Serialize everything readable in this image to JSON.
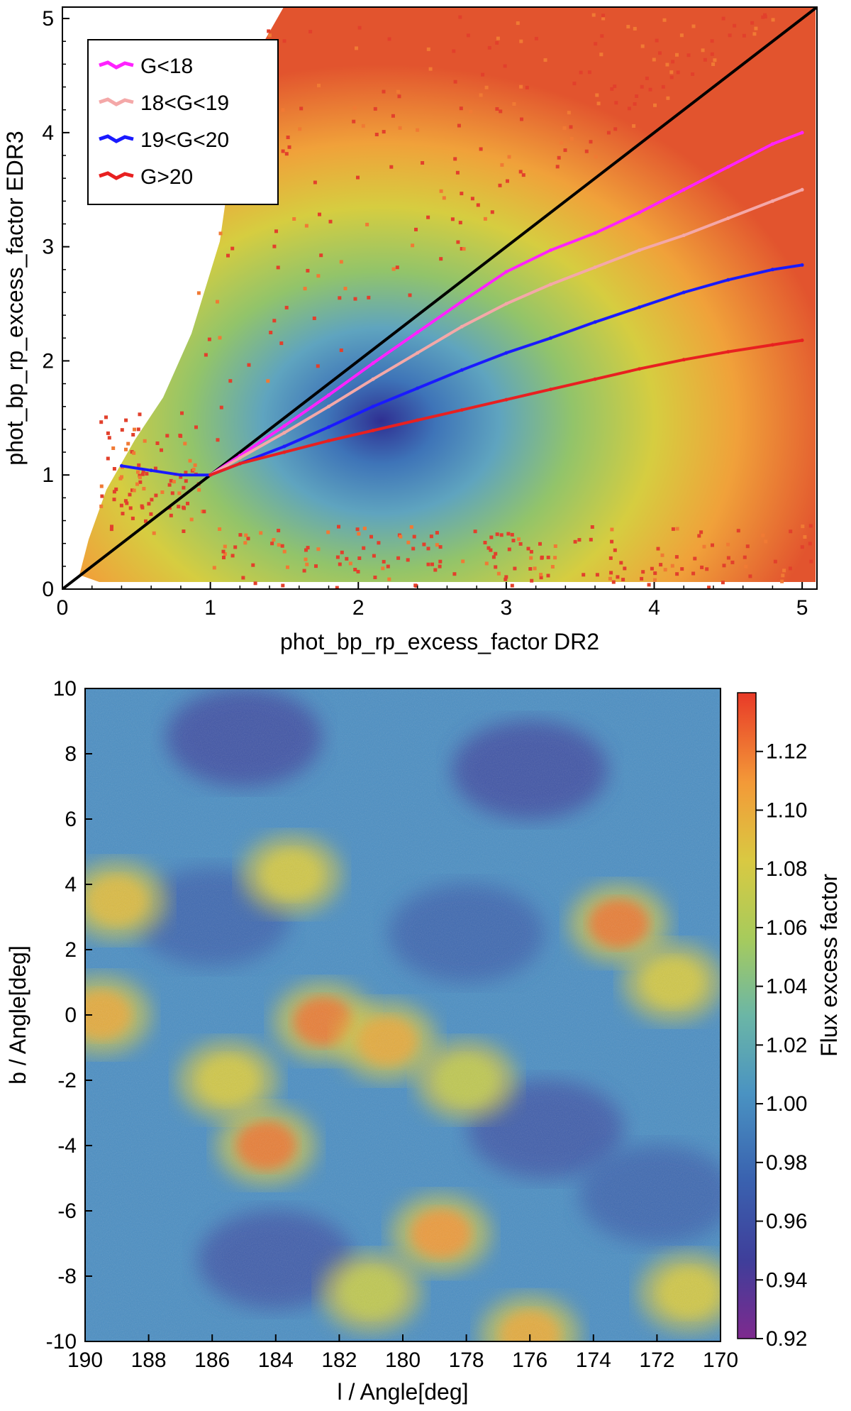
{
  "chart_data": [
    {
      "type": "scatter",
      "title": "",
      "xlabel": "phot_bp_rp_excess_factor DR2",
      "ylabel": "phot_bp_rp_excess_factor EDR3",
      "xlim": [
        0,
        5.1
      ],
      "ylim": [
        0,
        5.1
      ],
      "xticks": [
        0,
        1,
        2,
        3,
        4,
        5
      ],
      "yticks": [
        0,
        1,
        2,
        3,
        4,
        5
      ],
      "x_tick_labels": [
        "0",
        "1",
        "2",
        "3",
        "4",
        "5"
      ],
      "y_tick_labels": [
        "0",
        "1",
        "2",
        "3",
        "4",
        "5"
      ],
      "identity_line": {
        "x": [
          0,
          5.1
        ],
        "y": [
          0,
          5.1
        ],
        "color": "#000000"
      },
      "legend_position": "top-left",
      "series": [
        {
          "name": "G<18",
          "color": "#ff22ff",
          "x": [
            1.0,
            1.2,
            1.5,
            1.8,
            2.1,
            2.4,
            2.7,
            3.0,
            3.3,
            3.6,
            3.9,
            4.2,
            4.5,
            4.8,
            5.0
          ],
          "y": [
            1.0,
            1.17,
            1.43,
            1.7,
            1.98,
            2.25,
            2.52,
            2.78,
            2.97,
            3.12,
            3.3,
            3.5,
            3.7,
            3.9,
            4.0
          ]
        },
        {
          "name": "18<G<19",
          "color": "#f4a8a8",
          "x": [
            1.0,
            1.2,
            1.5,
            1.8,
            2.1,
            2.4,
            2.7,
            3.0,
            3.3,
            3.6,
            3.9,
            4.2,
            4.5,
            4.8,
            5.0
          ],
          "y": [
            1.0,
            1.15,
            1.37,
            1.6,
            1.84,
            2.07,
            2.3,
            2.5,
            2.67,
            2.82,
            2.97,
            3.1,
            3.25,
            3.4,
            3.5
          ]
        },
        {
          "name": "19<G<20",
          "color": "#1a1aff",
          "x": [
            0.4,
            0.6,
            0.8,
            1.0,
            1.2,
            1.5,
            1.8,
            2.1,
            2.4,
            2.7,
            3.0,
            3.3,
            3.6,
            3.9,
            4.2,
            4.5,
            4.8,
            5.0
          ],
          "y": [
            1.08,
            1.04,
            1.0,
            1.0,
            1.1,
            1.25,
            1.42,
            1.6,
            1.76,
            1.92,
            2.07,
            2.2,
            2.34,
            2.47,
            2.6,
            2.71,
            2.8,
            2.84
          ]
        },
        {
          "name": "G>20",
          "color": "#e82020",
          "x": [
            1.0,
            1.2,
            1.5,
            1.8,
            2.1,
            2.4,
            2.7,
            3.0,
            3.3,
            3.6,
            3.9,
            4.2,
            4.5,
            4.8,
            5.0
          ],
          "y": [
            1.0,
            1.1,
            1.2,
            1.3,
            1.39,
            1.48,
            1.57,
            1.66,
            1.75,
            1.84,
            1.93,
            2.01,
            2.08,
            2.14,
            2.18
          ]
        }
      ]
    },
    {
      "type": "heatmap",
      "title": "",
      "xlabel": "l / Angle[deg]",
      "ylabel": "b / Angle[deg]",
      "xlim": [
        190,
        170
      ],
      "ylim": [
        -10,
        10
      ],
      "xticks": [
        190,
        188,
        186,
        184,
        182,
        180,
        178,
        176,
        174,
        172,
        170
      ],
      "yticks": [
        10,
        8,
        6,
        4,
        2,
        0,
        -2,
        -4,
        -6,
        -8,
        -10
      ],
      "x_tick_labels": [
        "190",
        "188",
        "186",
        "184",
        "182",
        "180",
        "178",
        "176",
        "174",
        "172",
        "170"
      ],
      "y_tick_labels": [
        "10",
        "8",
        "6",
        "4",
        "2",
        "0",
        "-2",
        "-4",
        "-6",
        "-8",
        "-10"
      ],
      "colorbar": {
        "label": "Flux excess factor",
        "range": [
          0.92,
          1.14
        ],
        "ticks": [
          0.92,
          0.94,
          0.96,
          0.98,
          1.0,
          1.02,
          1.04,
          1.06,
          1.08,
          1.1,
          1.12
        ],
        "tick_labels": [
          "0.92",
          "0.94",
          "0.96",
          "0.98",
          "1.00",
          "1.02",
          "1.04",
          "1.06",
          "1.08",
          "1.10",
          "1.12"
        ]
      },
      "high_excess_regions": [
        {
          "l": 184.3,
          "b": -4.0,
          "value": 1.12
        },
        {
          "l": 182.5,
          "b": -0.2,
          "value": 1.12
        },
        {
          "l": 178.8,
          "b": -6.7,
          "value": 1.11
        },
        {
          "l": 173.2,
          "b": 2.8,
          "value": 1.12
        },
        {
          "l": 189.5,
          "b": 0.0,
          "value": 1.1
        },
        {
          "l": 180.5,
          "b": -0.8,
          "value": 1.1
        },
        {
          "l": 189.0,
          "b": 3.5,
          "value": 1.09
        },
        {
          "l": 183.5,
          "b": 4.3,
          "value": 1.08
        },
        {
          "l": 176.0,
          "b": -9.8,
          "value": 1.1
        },
        {
          "l": 171.5,
          "b": 1.0,
          "value": 1.08
        },
        {
          "l": 185.5,
          "b": -2.0,
          "value": 1.08
        },
        {
          "l": 178.0,
          "b": -2.0,
          "value": 1.07
        },
        {
          "l": 181.0,
          "b": -8.5,
          "value": 1.07
        },
        {
          "l": 171.0,
          "b": -8.5,
          "value": 1.08
        }
      ],
      "low_excess_regions": [
        {
          "l": 185.0,
          "b": 8.5,
          "value": 0.95
        },
        {
          "l": 176.0,
          "b": 7.5,
          "value": 0.95
        },
        {
          "l": 186.0,
          "b": 3.0,
          "value": 0.97
        },
        {
          "l": 178.0,
          "b": 2.5,
          "value": 0.97
        },
        {
          "l": 175.5,
          "b": -3.5,
          "value": 0.96
        },
        {
          "l": 184.0,
          "b": -7.5,
          "value": 0.96
        },
        {
          "l": 172.0,
          "b": -5.5,
          "value": 0.97
        }
      ]
    }
  ]
}
